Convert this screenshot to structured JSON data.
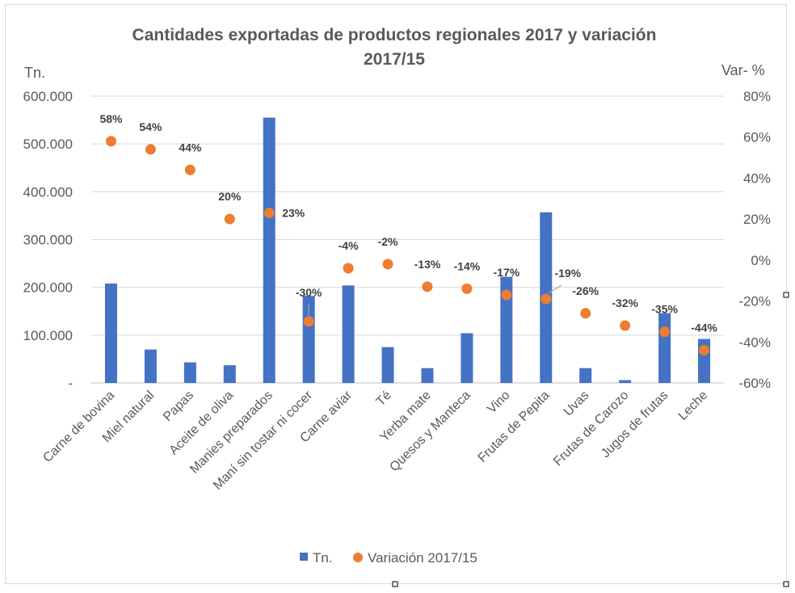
{
  "chart_data": {
    "type": "bar",
    "title_line1": "Cantidades exportadas de productos regionales 2017 y variación",
    "title_line2": "2017/15",
    "y_left_label": "Tn.",
    "y_right_label": "Var- %",
    "y_left_ticks": [
      "-",
      "100.000",
      "200.000",
      "300.000",
      "400.000",
      "500.000",
      "600.000"
    ],
    "y_right_ticks": [
      "-60%",
      "-40%",
      "-20%",
      "0%",
      "20%",
      "40%",
      "60%",
      "80%"
    ],
    "ylim_left": [
      0,
      600000
    ],
    "ylim_right": [
      -60,
      80
    ],
    "grid": true,
    "legend_position": "bottom",
    "categories": [
      "Carne de bovina",
      "Miel natural",
      "Papas",
      "Aceite de oliva",
      "Manies preparados",
      "Maní sin tostar ni cocer",
      "Carne aviar",
      "Té",
      "Yerba mate",
      "Quesos y Manteca",
      "Vino",
      "Frutas de Pepita",
      "Uvas",
      "Frutas de Carozo",
      "Jugos de frutas",
      "Leche"
    ],
    "series": [
      {
        "name": "Tn.",
        "type": "bar",
        "axis": "left",
        "color": "#4472c4",
        "values": [
          208000,
          70000,
          43000,
          37000,
          555000,
          182000,
          204000,
          75000,
          31000,
          104000,
          222000,
          357000,
          31000,
          6000,
          146000,
          92000
        ]
      },
      {
        "name": "Variación 2017/15",
        "type": "scatter",
        "axis": "right",
        "color": "#ed7d31",
        "values": [
          58,
          54,
          44,
          20,
          23,
          -30,
          -4,
          -2,
          -13,
          -14,
          -17,
          -19,
          -26,
          -32,
          -35,
          -44
        ],
        "labels": [
          "58%",
          "54%",
          "44%",
          "20%",
          "23%",
          "-30%",
          "-4%",
          "-2%",
          "-13%",
          "-14%",
          "-17%",
          "-19%",
          "-26%",
          "-32%",
          "-35%",
          "-44%"
        ]
      }
    ]
  }
}
